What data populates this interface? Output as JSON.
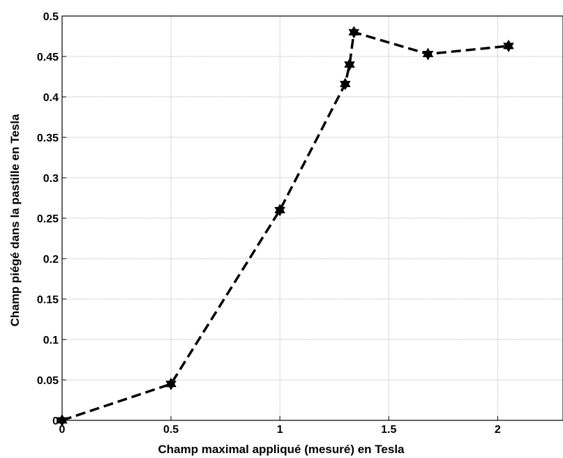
{
  "chart_data": {
    "type": "line",
    "title": "",
    "xlabel": "Champ maximal appliqué (mesuré) en Tesla",
    "ylabel": "Champ piégé dans la pastille en Tesla",
    "xlim": [
      0,
      2.3
    ],
    "ylim": [
      0,
      0.5
    ],
    "x_ticks": [
      "0",
      "0.5",
      "1",
      "1.5",
      "2"
    ],
    "y_ticks": [
      "0",
      "0.05",
      "0.1",
      "0.15",
      "0.2",
      "0.25",
      "0.3",
      "0.35",
      "0.4",
      "0.45",
      "0.5"
    ],
    "grid": true,
    "series": [
      {
        "line_style": "dashed",
        "marker": "hexagram-star",
        "color": "#000000",
        "x": [
          0,
          0.5,
          1.0,
          1.3,
          1.32,
          1.34,
          1.68,
          2.05
        ],
        "y": [
          0,
          0.045,
          0.26,
          0.416,
          0.44,
          0.48,
          0.453,
          0.463
        ]
      }
    ]
  }
}
